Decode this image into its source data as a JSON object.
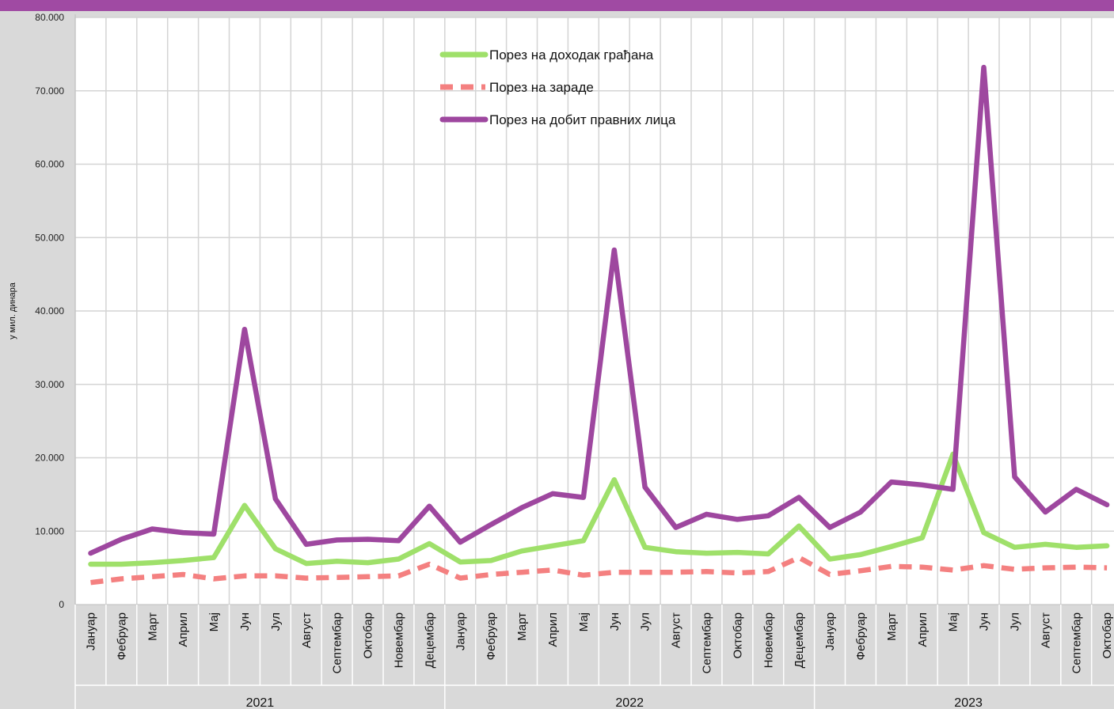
{
  "chart_data": {
    "type": "line",
    "ylabel": "у мил. динара",
    "ylim": [
      0,
      80000
    ],
    "ytick_labels": [
      "0",
      "10.000",
      "20.000",
      "30.000",
      "40.000",
      "50.000",
      "60.000",
      "70.000",
      "80.000"
    ],
    "categories": [
      "Јануар",
      "Фебруар",
      "Март",
      "Април",
      "Мај",
      "Јун",
      "Јул",
      "Август",
      "Септембар",
      "Октобар",
      "Новембар",
      "Децембар",
      "Јануар",
      "Фебруар",
      "Март",
      "Април",
      "Мај",
      "Јун",
      "Јул",
      "Август",
      "Септембар",
      "Октобар",
      "Новембар",
      "Децембар",
      "Јануар",
      "Фебруар",
      "Март",
      "Април",
      "Мај",
      "Јун",
      "Јул",
      "Август",
      "Септембар",
      "Октобар"
    ],
    "years": [
      {
        "label": "2021",
        "months": 12
      },
      {
        "label": "2022",
        "months": 12
      },
      {
        "label": "2023",
        "months": 10
      }
    ],
    "grid": true,
    "legend_position": "top-center",
    "series": [
      {
        "name": "Порез на доходак грађана",
        "color": "#9fe06a",
        "dash": "solid",
        "values": [
          5500,
          5500,
          5700,
          6000,
          6400,
          13500,
          7600,
          5600,
          5900,
          5700,
          6200,
          8300,
          5800,
          6000,
          7300,
          8000,
          8700,
          17000,
          7800,
          7200,
          7000,
          7100,
          6900,
          10700,
          6200,
          6800,
          7900,
          9100,
          20500,
          9800,
          7800,
          8200,
          7800,
          8000
        ]
      },
      {
        "name": "Порез на зараде",
        "color": "#f48080",
        "dash": "dashed",
        "values": [
          3000,
          3500,
          3800,
          4100,
          3500,
          3900,
          3900,
          3600,
          3700,
          3800,
          3900,
          5500,
          3600,
          4100,
          4400,
          4700,
          4000,
          4400,
          4400,
          4400,
          4500,
          4300,
          4500,
          6400,
          4100,
          4600,
          5200,
          5100,
          4700,
          5300,
          4800,
          5000,
          5100,
          5000
        ]
      },
      {
        "name": "Порез на добит правних лица",
        "color": "#9e479f",
        "dash": "solid",
        "values": [
          7000,
          8900,
          10300,
          9800,
          9600,
          37500,
          14400,
          8200,
          8800,
          8900,
          8700,
          13400,
          8500,
          10900,
          13200,
          15100,
          14600,
          48300,
          16000,
          10500,
          12300,
          11600,
          12100,
          14600,
          10500,
          12600,
          16700,
          16300,
          15700,
          73200,
          17400,
          12600,
          15700,
          13600
        ]
      }
    ]
  }
}
